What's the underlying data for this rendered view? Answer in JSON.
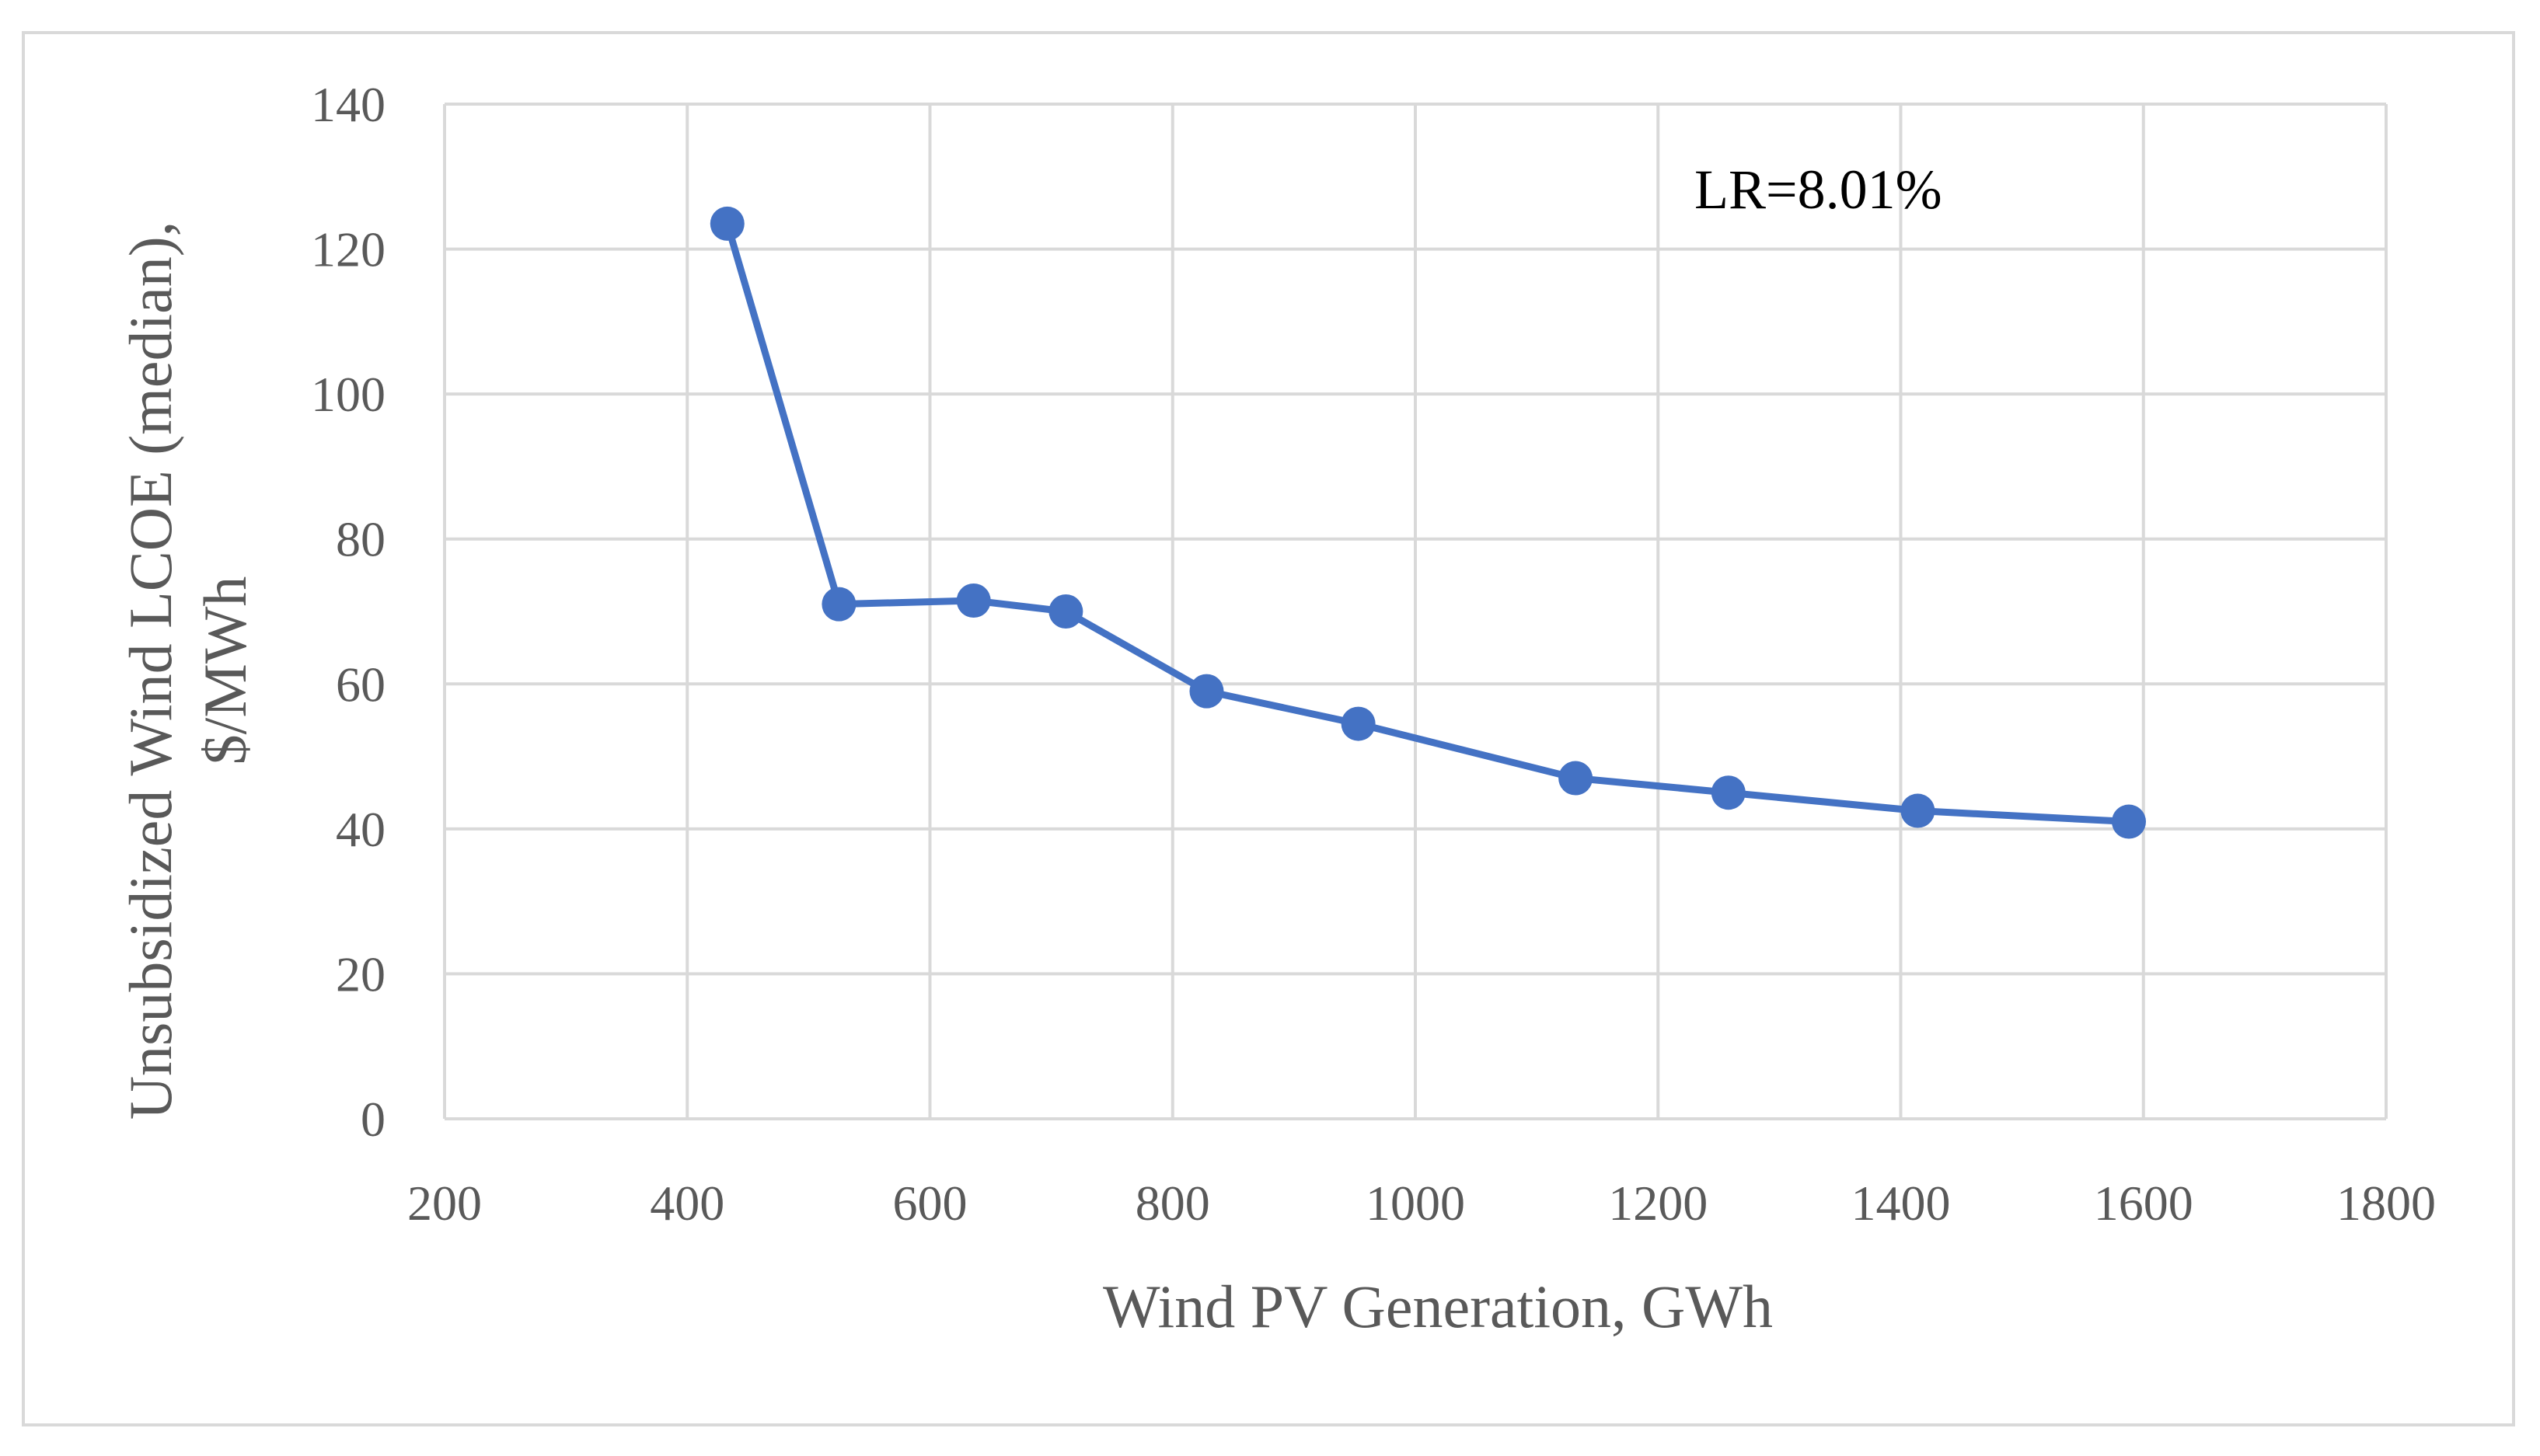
{
  "chart_data": {
    "type": "line",
    "title": "",
    "xlabel": "Wind PV Generation, GWh",
    "ylabel_line1": "Unsubsidized Wind LCOE (median),",
    "ylabel_line2": "$/MWh",
    "xlim": [
      200,
      1800
    ],
    "ylim": [
      0,
      140
    ],
    "xticks": [
      200,
      400,
      600,
      800,
      1000,
      1200,
      1400,
      1600,
      1800
    ],
    "yticks": [
      0,
      20,
      40,
      60,
      80,
      100,
      120,
      140
    ],
    "grid": true,
    "legend": "none",
    "series": [
      {
        "name": "Unsubsidized Wind LCOE",
        "color": "#4472c4",
        "x": [
          433,
          525,
          636,
          712,
          828,
          953,
          1132,
          1258,
          1414,
          1588
        ],
        "y": [
          123.5,
          71,
          71.5,
          70,
          59,
          54.5,
          47,
          45,
          42.5,
          41
        ]
      }
    ],
    "annotation": "LR=8.01%"
  }
}
